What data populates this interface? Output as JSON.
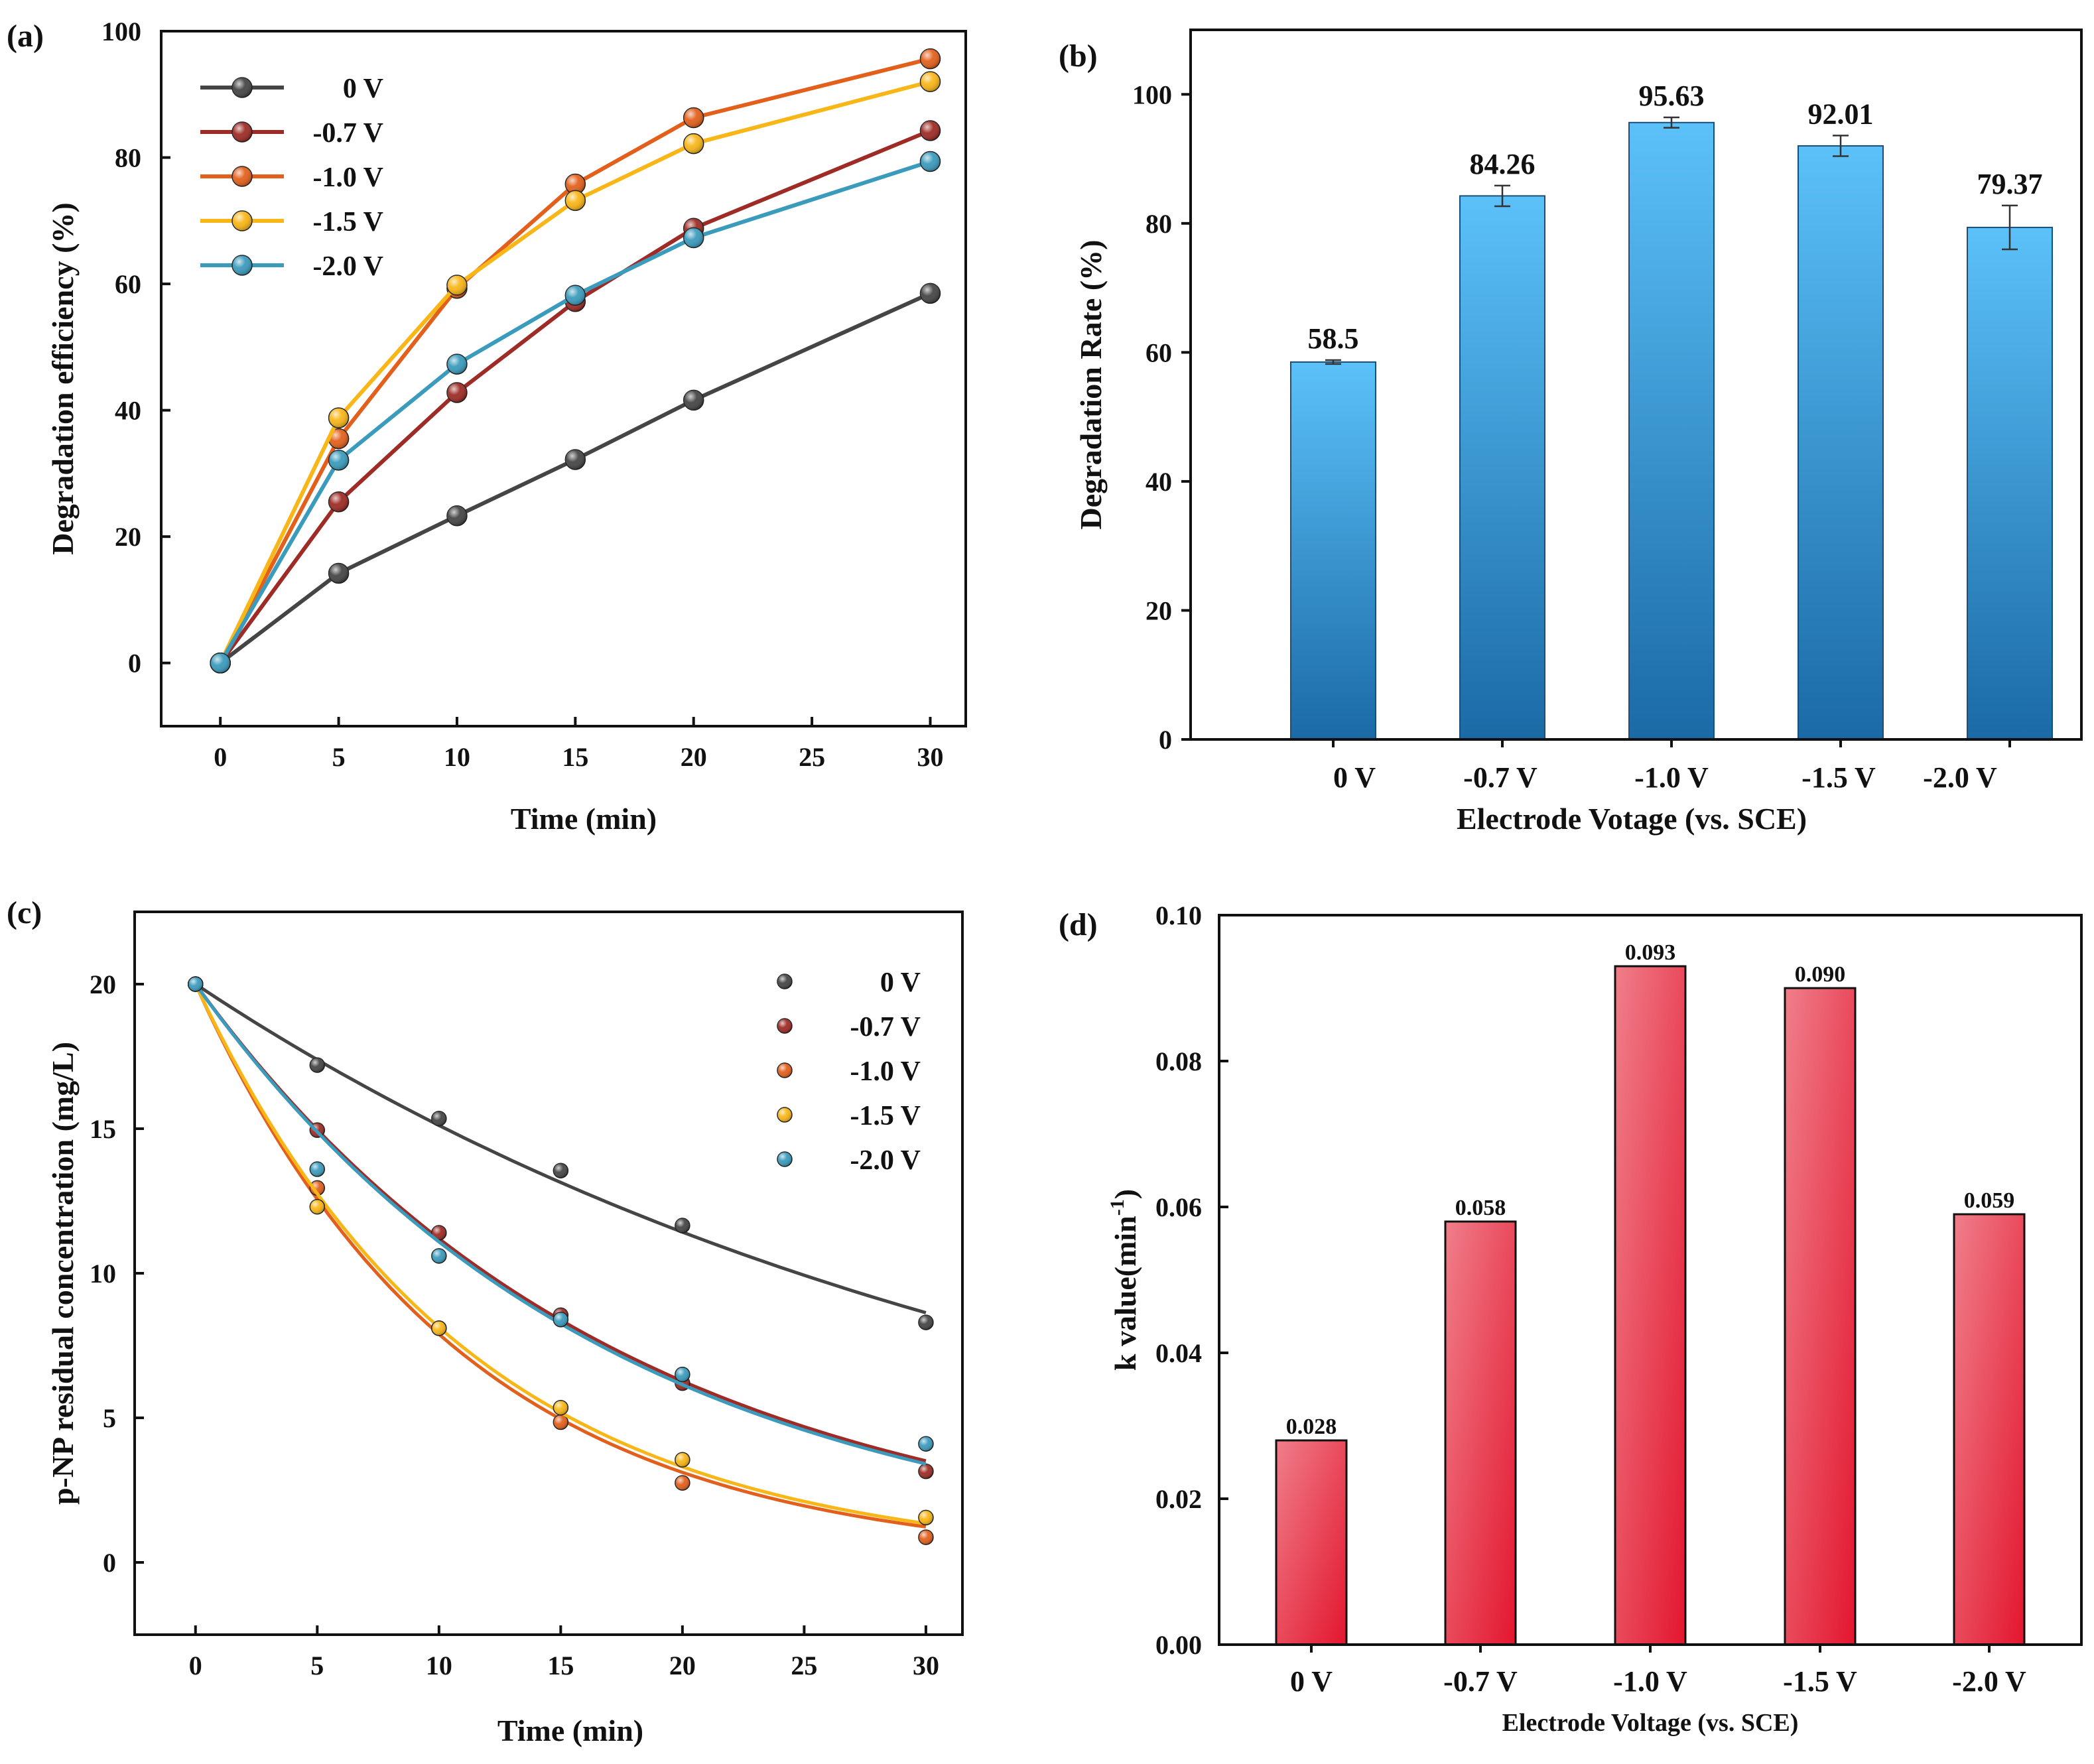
{
  "chart_data": [
    {
      "panel": "(a)",
      "type": "line",
      "xlabel": "Time (min)",
      "ylabel": "Degradation efficiency (%)",
      "xlim": [
        -2.5,
        31.5
      ],
      "ylim": [
        -10,
        100
      ],
      "xticks": [
        0,
        5,
        10,
        15,
        20,
        25,
        30
      ],
      "yticks": [
        0,
        20,
        40,
        60,
        80,
        100
      ],
      "legend": "top-left",
      "x": [
        0,
        5,
        10,
        15,
        20,
        30
      ],
      "series": [
        {
          "name": "0 V",
          "color": "#454545",
          "values": [
            0,
            14.2,
            23.3,
            32.2,
            41.6,
            58.5
          ]
        },
        {
          "name": "-0.7 V",
          "color": "#9e2b25",
          "values": [
            0,
            25.5,
            42.8,
            57.2,
            68.8,
            84.26
          ]
        },
        {
          "name": "-1.0 V",
          "color": "#e3601c",
          "values": [
            0,
            35.5,
            59.3,
            75.8,
            86.3,
            95.63
          ]
        },
        {
          "name": "-1.5 V",
          "color": "#f9b617",
          "values": [
            0,
            38.8,
            59.8,
            73.2,
            82.2,
            92.01
          ]
        },
        {
          "name": "-2.0 V",
          "color": "#3a9bbd",
          "values": [
            0,
            32.1,
            47.3,
            58.2,
            67.3,
            79.37
          ]
        }
      ]
    },
    {
      "panel": "(b)",
      "type": "bar",
      "xlabel": "Electrode Votage (vs. SCE)",
      "ylabel": "Degradation Rate (%)",
      "ylim": [
        0,
        110
      ],
      "yticks": [
        0,
        20,
        40,
        60,
        80,
        100
      ],
      "categories": [
        "0 V",
        "-0.7 V",
        "-1.0 V",
        "-1.5 V",
        "-2.0 V"
      ],
      "values": [
        58.5,
        84.26,
        95.63,
        92.01,
        79.37
      ],
      "value_labels": [
        "58.5",
        "84.26",
        "95.63",
        "92.01",
        "79.37"
      ],
      "errors": [
        0.3,
        1.6,
        0.8,
        1.6,
        3.4
      ],
      "color_top": "#5cc1f9",
      "color_bottom": "#1a6aa6"
    },
    {
      "panel": "(c)",
      "type": "scatter",
      "xlabel": "Time (min)",
      "ylabel": "p-NP residual concentration (mg/L)",
      "xlim": [
        -2.5,
        31.5
      ],
      "ylim": [
        -2.5,
        22.5
      ],
      "xticks": [
        0,
        5,
        10,
        15,
        20,
        25,
        30
      ],
      "yticks": [
        0,
        5,
        10,
        15,
        20
      ],
      "legend": "top-right",
      "x": [
        0,
        5,
        10,
        15,
        20,
        30
      ],
      "series": [
        {
          "name": "0 V",
          "color": "#454545",
          "values": [
            20,
            17.2,
            15.35,
            13.55,
            11.65,
            8.3
          ],
          "fit_k": 0.028
        },
        {
          "name": "-0.7 V",
          "color": "#9e2b25",
          "values": [
            20,
            14.95,
            11.4,
            8.55,
            6.2,
            3.15
          ],
          "fit_k": 0.058
        },
        {
          "name": "-1.0 V",
          "color": "#e3601c",
          "values": [
            20,
            12.95,
            8.1,
            4.85,
            2.75,
            0.87
          ],
          "fit_k": 0.093
        },
        {
          "name": "-1.5 V",
          "color": "#f9b617",
          "values": [
            20,
            12.3,
            8.1,
            5.35,
            3.55,
            1.55
          ],
          "fit_k": 0.09
        },
        {
          "name": "-2.0 V",
          "color": "#3a9bbd",
          "values": [
            20,
            13.6,
            10.6,
            8.4,
            6.5,
            4.1
          ],
          "fit_k": 0.059
        }
      ]
    },
    {
      "panel": "(d)",
      "type": "bar",
      "xlabel": "Electrode Voltage (vs. SCE)",
      "ylabel_main": "k value(min",
      "ylabel_sup": "-1",
      "ylabel_tail": ")",
      "ylim": [
        0,
        0.1
      ],
      "yticks": [
        "0.00",
        "0.02",
        "0.04",
        "0.06",
        "0.08",
        "0.10"
      ],
      "categories": [
        "0 V",
        "-0.7 V",
        "-1.0 V",
        "-1.5 V",
        "-2.0 V"
      ],
      "values": [
        0.028,
        0.058,
        0.093,
        0.09,
        0.059
      ],
      "value_labels": [
        "0.028",
        "0.058",
        "0.093",
        "0.090",
        "0.059"
      ],
      "color_light": "#f07e8a",
      "color_dark": "#e3162e"
    }
  ]
}
